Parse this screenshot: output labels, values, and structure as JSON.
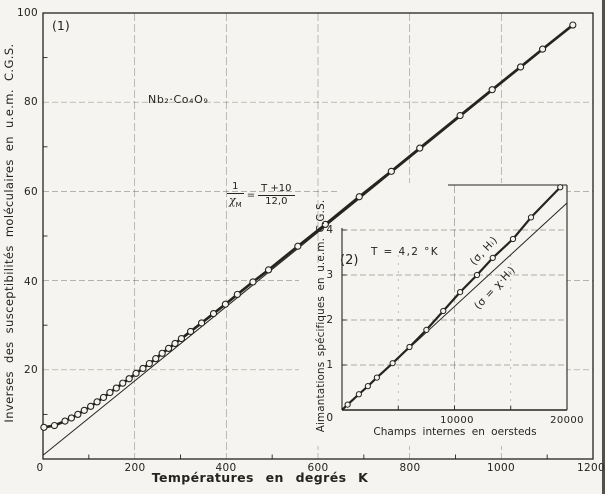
{
  "figure": {
    "panel1_label": "(1)",
    "panel2_label": "(2)",
    "compound": "Nb₂·Co₄O₉",
    "formula": {
      "num1": "1",
      "chi": "χ",
      "chi_sub": "M",
      "equals": "=",
      "num2": "T +10",
      "den2": "12,0"
    }
  },
  "chart_data": [
    {
      "type": "scatter",
      "panel": "1",
      "xlabel": "Températures  en  degrés K",
      "ylabel": "Inverses des susceptibilités moléculaires en u.e.m. C.G.S.",
      "xlim": [
        0,
        1200
      ],
      "ylim": [
        0,
        100
      ],
      "x_ticks": [
        0,
        200,
        400,
        600,
        800,
        1000,
        1200
      ],
      "x_tick_labels": [
        "0",
        "200",
        "400",
        "600",
        "800",
        "1000",
        "1200"
      ],
      "y_ticks": [
        20,
        40,
        60,
        80,
        100
      ],
      "y_tick_labels": [
        "20",
        "40",
        "60",
        "80",
        "100"
      ],
      "grid": "faint dashed grid at every labeled tick",
      "annotation": "1/χM = (T+10)/12,0",
      "series": [
        {
          "name": "inverse molecular susceptibility data",
          "type": "scatter+line",
          "marker": "open-circle",
          "points": [
            [
              2,
              7.1
            ],
            [
              25,
              7.5
            ],
            [
              48,
              8.5
            ],
            [
              62,
              9.2
            ],
            [
              76,
              10.0
            ],
            [
              90,
              10.9
            ],
            [
              104,
              11.8
            ],
            [
              118,
              12.8
            ],
            [
              132,
              13.8
            ],
            [
              146,
              14.9
            ],
            [
              160,
              15.9
            ],
            [
              174,
              17.0
            ],
            [
              188,
              18.0
            ],
            [
              203,
              19.2
            ],
            [
              218,
              20.3
            ],
            [
              232,
              21.4
            ],
            [
              246,
              22.5
            ],
            [
              260,
              23.7
            ],
            [
              274,
              24.8
            ],
            [
              288,
              25.9
            ],
            [
              302,
              27.0
            ],
            [
              322,
              28.6
            ],
            [
              346,
              30.5
            ],
            [
              372,
              32.6
            ],
            [
              398,
              34.7
            ],
            [
              424,
              36.9
            ],
            [
              458,
              39.7
            ],
            [
              492,
              42.4
            ],
            [
              556,
              47.7
            ],
            [
              616,
              52.6
            ],
            [
              690,
              58.8
            ],
            [
              760,
              64.5
            ],
            [
              822,
              69.7
            ],
            [
              910,
              77.0
            ],
            [
              980,
              82.8
            ],
            [
              1042,
              87.9
            ],
            [
              1090,
              91.9
            ],
            [
              1156,
              97.3
            ]
          ]
        },
        {
          "name": "Curie-Weiss line (T+10)/12,0",
          "type": "line",
          "points": [
            [
              0,
              0.83
            ],
            [
              1156,
              97.2
            ]
          ]
        }
      ]
    },
    {
      "type": "scatter",
      "panel": "2",
      "xlabel": "Champs  internes en oersteds",
      "ylabel": "Aimantations spécifiques en u.e.m. C.G.S.",
      "xlim": [
        0,
        20000
      ],
      "ylim": [
        0,
        5
      ],
      "x_ticks": [
        0,
        10000,
        20000
      ],
      "x_tick_labels": [
        "0",
        "10000",
        "20000"
      ],
      "y_ticks": [
        0,
        1,
        2,
        3,
        4
      ],
      "y_tick_labels": [
        "0",
        "1",
        "2",
        "3",
        "4"
      ],
      "temperature_label": "T = 4,2 °K",
      "curve_labels": [
        "(σ, Hᵢ)",
        "(σ = χ·Hᵢ)"
      ],
      "series": [
        {
          "name": "specific magnetization data (σ, Hᵢ)",
          "type": "scatter+line",
          "marker": "open-circle",
          "points": [
            [
              0,
              0
            ],
            [
              500,
              0.12
            ],
            [
              1500,
              0.35
            ],
            [
              2300,
              0.53
            ],
            [
              3100,
              0.72
            ],
            [
              4500,
              1.04
            ],
            [
              6000,
              1.4
            ],
            [
              7500,
              1.78
            ],
            [
              9000,
              2.2
            ],
            [
              10500,
              2.62
            ],
            [
              12000,
              3.0
            ],
            [
              13400,
              3.38
            ],
            [
              15200,
              3.8
            ],
            [
              16800,
              4.28
            ],
            [
              19400,
              4.95
            ]
          ]
        },
        {
          "name": "linear law (σ = χ·Hᵢ)",
          "type": "line",
          "points": [
            [
              0,
              0
            ],
            [
              20000,
              4.6
            ]
          ]
        }
      ]
    }
  ]
}
